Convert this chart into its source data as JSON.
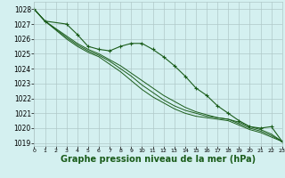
{
  "background_color": "#d4f0f0",
  "grid_color": "#b0c8c8",
  "line_color": "#1a5c1a",
  "marker_color": "#1a5c1a",
  "xlabel": "Graphe pression niveau de la mer (hPa)",
  "xlabel_fontsize": 7,
  "xlim": [
    0,
    23
  ],
  "ylim": [
    1018.8,
    1028.5
  ],
  "yticks": [
    1019,
    1020,
    1021,
    1022,
    1023,
    1024,
    1025,
    1026,
    1027,
    1028
  ],
  "xticks": [
    0,
    1,
    2,
    3,
    4,
    5,
    6,
    7,
    8,
    9,
    10,
    11,
    12,
    13,
    14,
    15,
    16,
    17,
    18,
    19,
    20,
    21,
    22,
    23
  ],
  "series": [
    {
      "x": [
        0,
        1,
        3,
        4,
        5,
        6,
        7,
        8,
        9,
        10,
        11,
        12,
        13,
        14,
        15,
        16,
        17,
        18,
        19,
        20,
        21,
        22,
        23
      ],
      "y": [
        1028.0,
        1027.2,
        1027.0,
        1026.3,
        1025.5,
        1025.3,
        1025.2,
        1025.5,
        1025.7,
        1025.7,
        1025.3,
        1024.8,
        1024.2,
        1023.5,
        1022.7,
        1022.2,
        1021.5,
        1021.0,
        1020.5,
        1020.1,
        1020.0,
        1020.1,
        1019.1
      ],
      "has_markers": true
    },
    {
      "x": [
        0,
        1,
        3,
        4,
        5,
        6,
        7,
        8,
        9,
        10,
        11,
        12,
        13,
        14,
        15,
        16,
        17,
        18,
        19,
        20,
        21,
        22,
        23
      ],
      "y": [
        1028.0,
        1027.2,
        1026.2,
        1025.7,
        1025.3,
        1025.0,
        1024.6,
        1024.2,
        1023.7,
        1023.2,
        1022.7,
        1022.2,
        1021.8,
        1021.4,
        1021.1,
        1020.9,
        1020.7,
        1020.6,
        1020.4,
        1020.1,
        1019.9,
        1019.6,
        1019.1
      ],
      "has_markers": false
    },
    {
      "x": [
        0,
        1,
        3,
        4,
        5,
        6,
        7,
        8,
        9,
        10,
        11,
        12,
        13,
        14,
        15,
        16,
        17,
        18,
        19,
        20,
        21,
        22,
        23
      ],
      "y": [
        1028.0,
        1027.2,
        1026.1,
        1025.6,
        1025.2,
        1024.9,
        1024.5,
        1024.0,
        1023.5,
        1022.9,
        1022.4,
        1021.9,
        1021.5,
        1021.2,
        1021.0,
        1020.8,
        1020.7,
        1020.6,
        1020.3,
        1020.0,
        1019.8,
        1019.5,
        1019.1
      ],
      "has_markers": false
    },
    {
      "x": [
        0,
        1,
        3,
        4,
        5,
        6,
        7,
        8,
        9,
        10,
        11,
        12,
        13,
        14,
        15,
        16,
        17,
        18,
        19,
        20,
        21,
        22,
        23
      ],
      "y": [
        1028.0,
        1027.2,
        1026.0,
        1025.5,
        1025.1,
        1024.8,
        1024.3,
        1023.8,
        1023.2,
        1022.6,
        1022.1,
        1021.7,
        1021.3,
        1021.0,
        1020.8,
        1020.7,
        1020.6,
        1020.5,
        1020.2,
        1019.9,
        1019.7,
        1019.4,
        1019.1
      ],
      "has_markers": false
    }
  ]
}
